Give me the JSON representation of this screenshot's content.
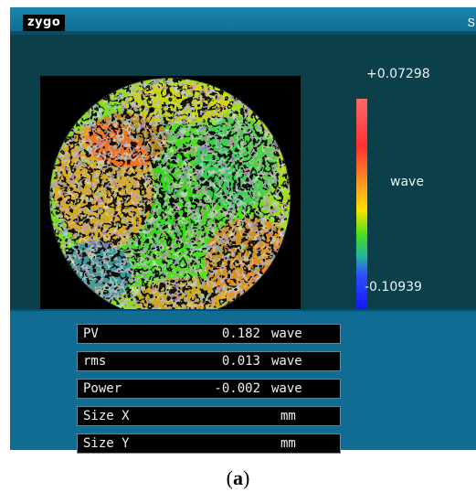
{
  "app": {
    "logo_text": "zygo",
    "edge_glyph": "S"
  },
  "colorbar": {
    "max_label": "+0.07298",
    "min_label": "-0.10939",
    "unit_label": "wave"
  },
  "measurements": [
    {
      "label": "PV",
      "value": "0.182",
      "unit": "wave"
    },
    {
      "label": "rms",
      "value": "0.013",
      "unit": "wave"
    },
    {
      "label": "Power",
      "value": "-0.002",
      "unit": "wave"
    },
    {
      "label": "Size X",
      "value": "",
      "unit": "mm"
    },
    {
      "label": "Size Y",
      "value": "",
      "unit": "mm"
    }
  ],
  "caption": {
    "open": "(",
    "letter": "a",
    "close": ")"
  }
}
